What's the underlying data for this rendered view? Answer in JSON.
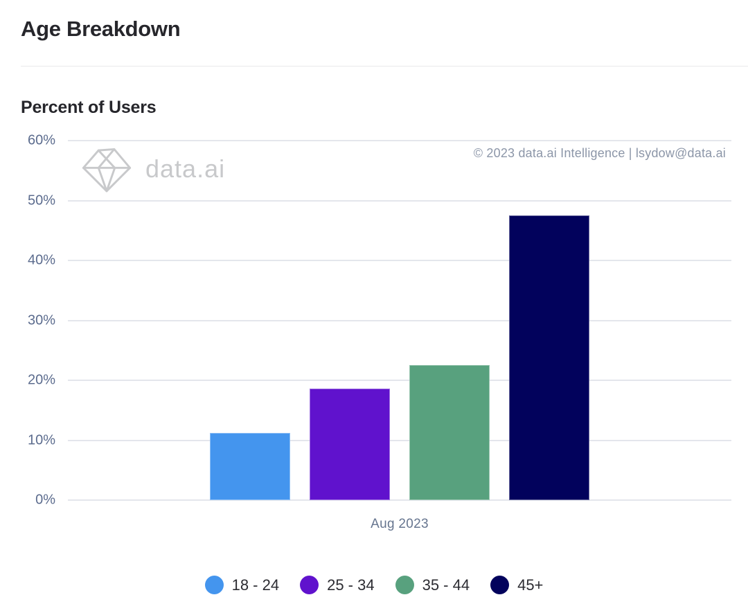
{
  "header": {
    "title": "Age Breakdown",
    "subtitle": "Percent of Users"
  },
  "watermark": {
    "brand": "data.ai",
    "copyright": "© 2023 data.ai Intelligence | lsydow@data.ai"
  },
  "chart_data": {
    "type": "bar",
    "title": "Age Breakdown",
    "ylabel": "Percent of Users",
    "categories": [
      "18 - 24",
      "25 - 34",
      "35 - 44",
      "45+"
    ],
    "values": [
      11.2,
      18.6,
      22.5,
      47.5
    ],
    "value_unit": "%",
    "x_tick_label": "Aug 2023",
    "yticks": [
      0,
      10,
      20,
      30,
      40,
      50,
      60
    ],
    "ytick_suffix": "%",
    "ylim": [
      0,
      60
    ],
    "grid": true,
    "legend_position": "bottom",
    "colors": [
      "#4495ee",
      "#6012cd",
      "#58a17e",
      "#02025c"
    ]
  },
  "colors": {
    "axis_text": "#5c6c8e",
    "gridline": "#e4e6ec",
    "title_text": "#26262b",
    "legend_text": "#2c2c32",
    "watermark": "#c8c9cb",
    "copyright_text": "#8c96a8"
  }
}
